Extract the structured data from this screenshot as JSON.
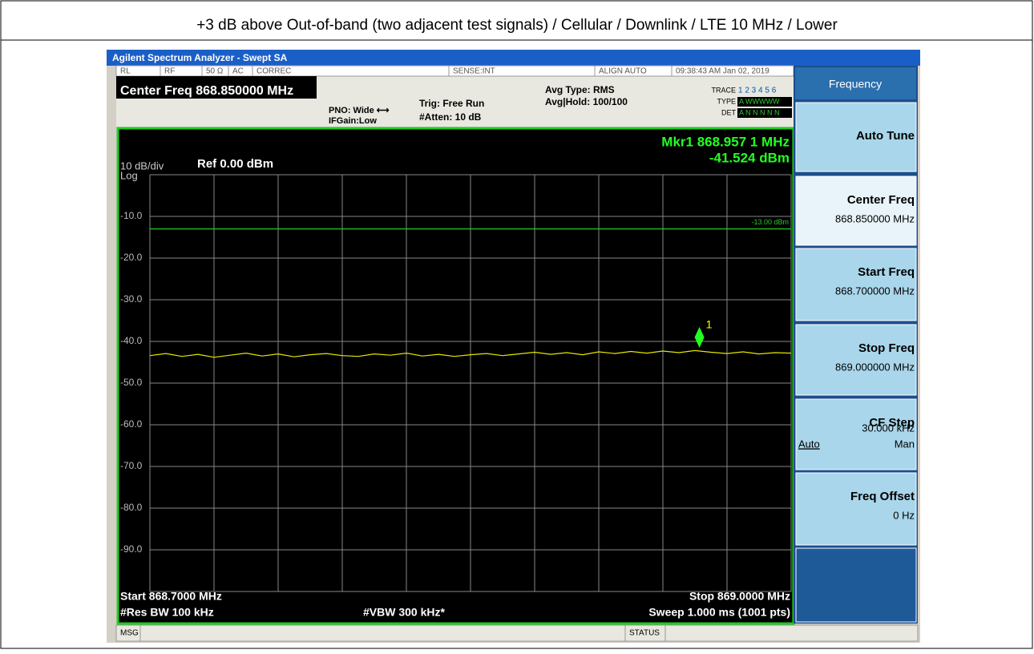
{
  "caption": "+3 dB above Out-of-band (two adjacent test signals) / Cellular / Downlink / LTE 10 MHz / Lower",
  "window_title": "Agilent Spectrum Analyzer - Swept SA",
  "status_row": [
    "RL",
    "RF",
    "50 Ω",
    "AC",
    "CORREC",
    "SENSE:INT",
    "ALIGN AUTO",
    "09:38:43 AM Jan 02, 2019"
  ],
  "header": {
    "center_freq": "Center Freq 868.850000 MHz",
    "pno": "PNO: Wide ⟷",
    "ifgain": "IFGain:Low",
    "trig": "Trig: Free Run",
    "atten": "#Atten: 10 dB",
    "avg_type": "Avg Type: RMS",
    "avg_hold": "Avg|Hold: 100/100",
    "trace_label": "TRACE",
    "trace_nums": "1 2 3 4 5 6",
    "type_label": "TYPE",
    "type_value": "A WWWWW",
    "det_label": "DET",
    "det_value": "A N N N N N"
  },
  "plot": {
    "scale": "10 dB/div",
    "log": "Log",
    "ref": "Ref 0.00 dBm",
    "ylim": [
      -100,
      0
    ],
    "yticks": [
      {
        "value": -10,
        "label": "-10.0"
      },
      {
        "value": -20,
        "label": "-20.0"
      },
      {
        "value": -30,
        "label": "-30.0"
      },
      {
        "value": -40,
        "label": "-40.0"
      },
      {
        "value": -50,
        "label": "-50.0"
      },
      {
        "value": -60,
        "label": "-60.0"
      },
      {
        "value": -70,
        "label": "-70.0"
      },
      {
        "value": -80,
        "label": "-80.0"
      },
      {
        "value": -90,
        "label": "-90.0"
      }
    ],
    "xlim": [
      868.7,
      869.0
    ],
    "limit_line": {
      "value": -13,
      "label": "-13.00 dBm",
      "color": "#22cc22"
    },
    "trace": {
      "color": "#e6e600",
      "values": [
        -43.4,
        -42.9,
        -43.6,
        -43.1,
        -43.8,
        -43.3,
        -42.8,
        -43.5,
        -43.0,
        -43.7,
        -43.2,
        -42.9,
        -43.4,
        -43.6,
        -43.0,
        -43.3,
        -42.8,
        -43.5,
        -43.1,
        -43.6,
        -43.2,
        -42.9,
        -43.4,
        -43.0,
        -42.6,
        -43.1,
        -42.7,
        -43.2,
        -42.5,
        -42.9,
        -42.4,
        -42.8,
        -42.3,
        -42.7,
        -42.2,
        -42.6,
        -42.9,
        -42.5,
        -43.0,
        -42.7,
        -42.8
      ]
    },
    "marker": {
      "freq_label": "Mkr1 868.957 1 MHz",
      "level_label": "-41.524 dBm",
      "id": "1",
      "x": 868.9571,
      "y": -41.524
    }
  },
  "footer": {
    "start": "Start 868.7000 MHz",
    "stop": "Stop 869.0000 MHz",
    "rbw": "#Res BW 100 kHz",
    "vbw": "#VBW 300 kHz*",
    "sweep": "Sweep  1.000 ms (1001 pts)"
  },
  "softkeys": {
    "title": "Frequency",
    "keys": [
      {
        "label": "Auto Tune"
      },
      {
        "label": "Center Freq",
        "value": "868.850000 MHz"
      },
      {
        "label": "Start Freq",
        "value": "868.700000 MHz"
      },
      {
        "label": "Stop Freq",
        "value": "869.000000 MHz"
      },
      {
        "label": "CF Step",
        "value": "30.000 kHz",
        "auto": "Auto",
        "man": "Man"
      },
      {
        "label": "Freq Offset",
        "value": "0 Hz"
      }
    ]
  },
  "bottom_bar": {
    "msg": "MSG",
    "status": "STATUS"
  }
}
